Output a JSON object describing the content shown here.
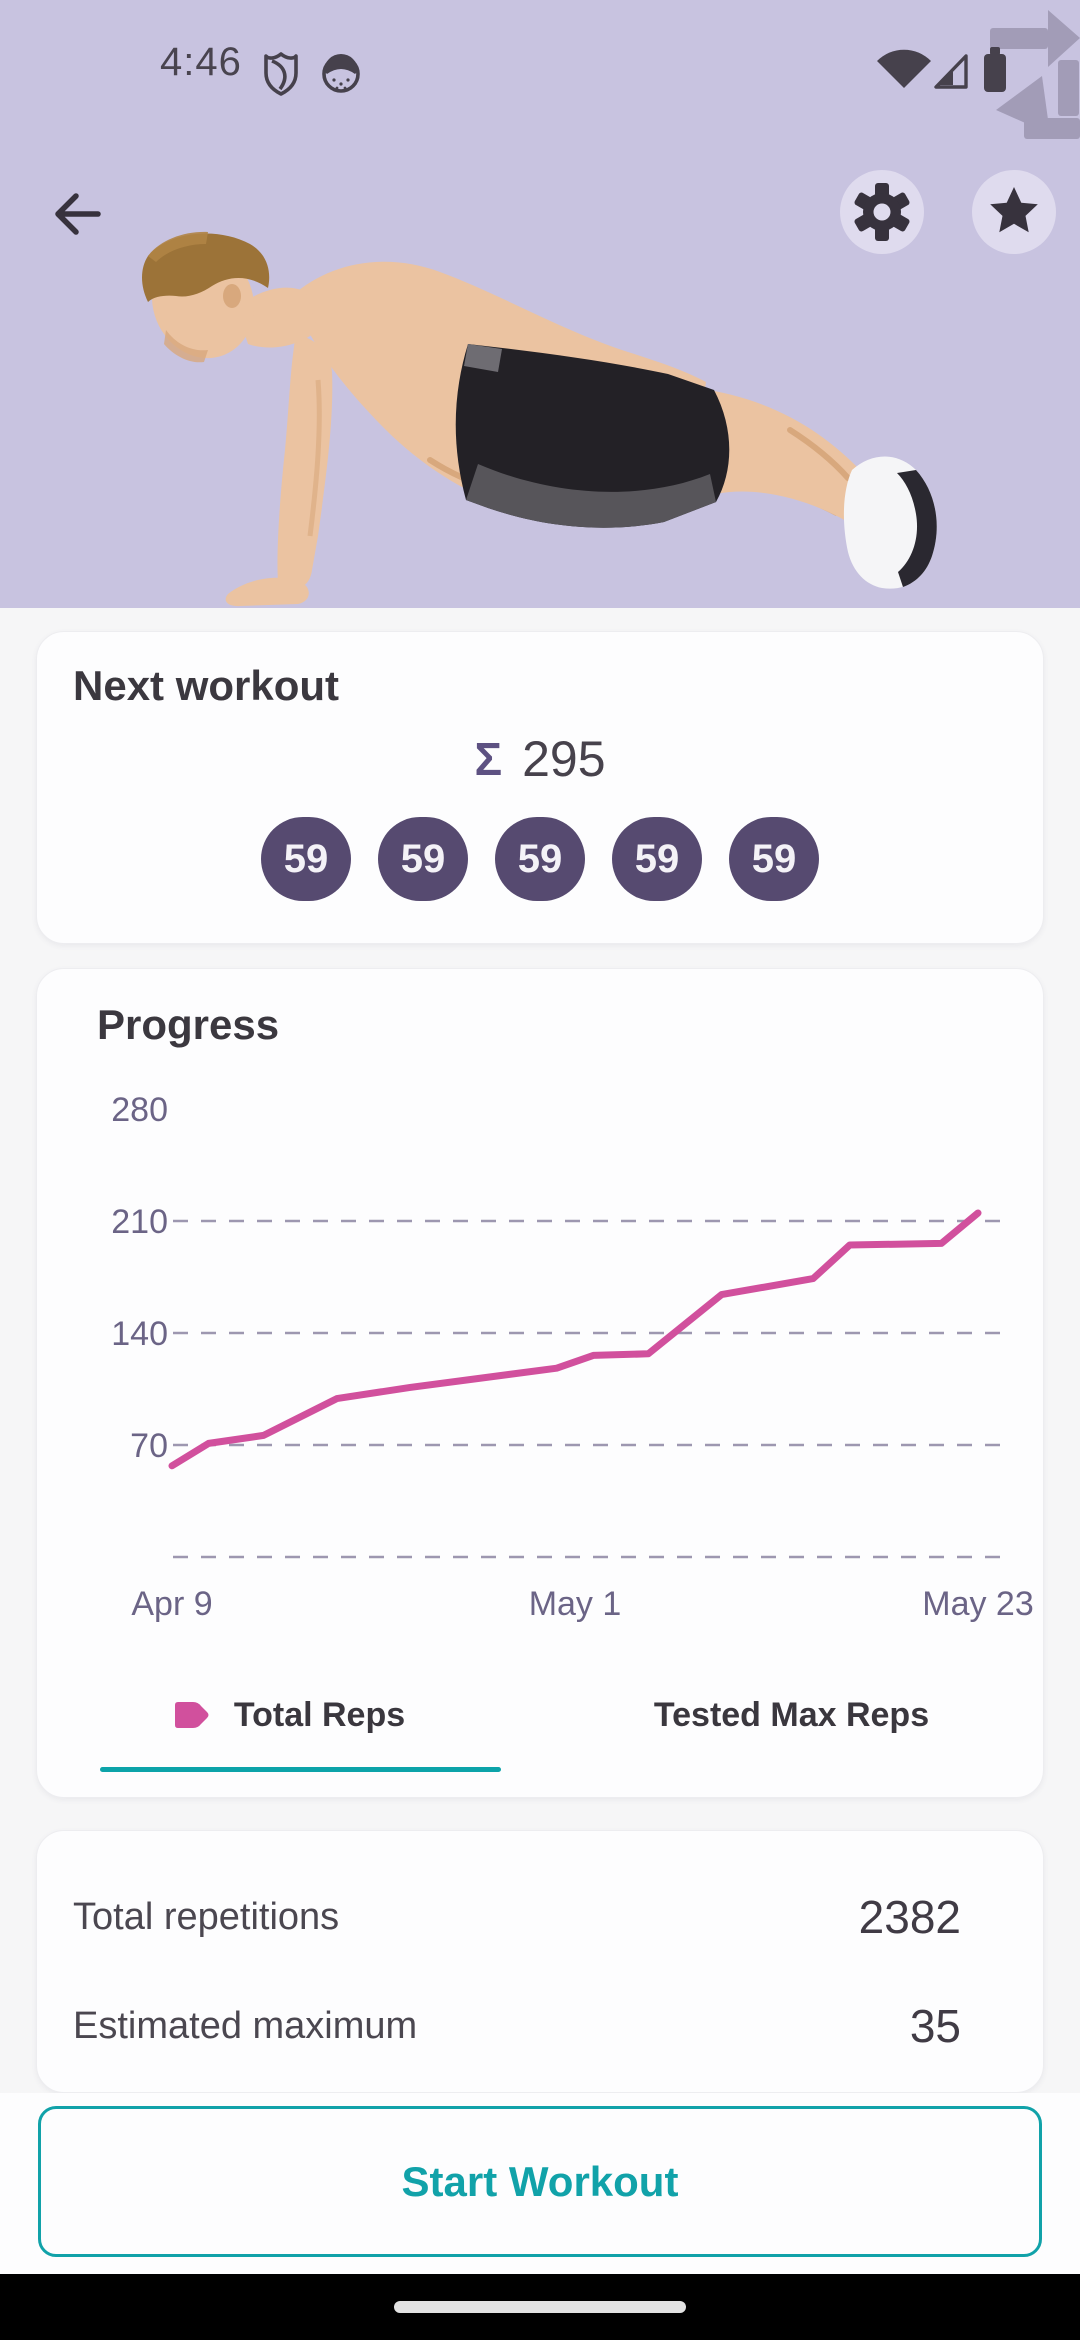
{
  "status_bar": {
    "time": "4:46",
    "icons": [
      "shield-icon",
      "avatar-face-icon",
      "wifi-icon",
      "cell-signal-icon",
      "battery-icon",
      "screen-rotation-icon"
    ]
  },
  "header": {
    "illustration": "man doing push-up plank exercise",
    "buttons": [
      "back",
      "settings",
      "favorite"
    ]
  },
  "next_workout": {
    "title": "Next workout",
    "sum_symbol": "Σ",
    "sum_value": "295",
    "sets": [
      "59",
      "59",
      "59",
      "59",
      "59"
    ]
  },
  "chart_data": {
    "type": "line",
    "title": "Progress",
    "xlabel": "",
    "ylabel": "",
    "x_unit": "days since Apr 9",
    "xlim": [
      0,
      44
    ],
    "ylim": [
      0,
      297
    ],
    "grid": "dashed horizontal",
    "legend_position": "bottom",
    "xticks": [
      {
        "day": 0,
        "label": "Apr 9"
      },
      {
        "day": 22,
        "label": "May 1"
      },
      {
        "day": 44,
        "label": "May 23"
      }
    ],
    "yticks": [
      {
        "value": 280,
        "label": "280",
        "grid": false
      },
      {
        "value": 210,
        "label": "210",
        "grid": true
      },
      {
        "value": 140,
        "label": "140",
        "grid": true
      },
      {
        "value": 70,
        "label": "70",
        "grid": true
      },
      {
        "value": 0,
        "label": "",
        "grid": true
      }
    ],
    "series": [
      {
        "name": "Total Reps",
        "color": "#d1509d",
        "points": [
          [
            0,
            57
          ],
          [
            2,
            71
          ],
          [
            5,
            76
          ],
          [
            9,
            99
          ],
          [
            13,
            106
          ],
          [
            21,
            118
          ],
          [
            23,
            126
          ],
          [
            26,
            127
          ],
          [
            30,
            164
          ],
          [
            35,
            174
          ],
          [
            37,
            195
          ],
          [
            42,
            196
          ],
          [
            44,
            215
          ]
        ]
      }
    ]
  },
  "legend": {
    "tabs": [
      {
        "label": "Total Reps",
        "active": true
      },
      {
        "label": "Tested Max Reps",
        "active": false
      }
    ]
  },
  "stats": {
    "rows": [
      {
        "label": "Total repetitions",
        "value": "2382"
      },
      {
        "label": "Estimated maximum",
        "value": "35"
      }
    ]
  },
  "actions": {
    "start_workout": "Start Workout"
  },
  "colors": {
    "header_bg": "#c8c3e0",
    "accent_teal": "#0ca3a9",
    "accent_pink": "#d1509d",
    "pill_bg": "#564a70",
    "sum_symbol_purple": "#5d5182",
    "axis_text": "#6b6486",
    "nav_bar": "#000000"
  }
}
